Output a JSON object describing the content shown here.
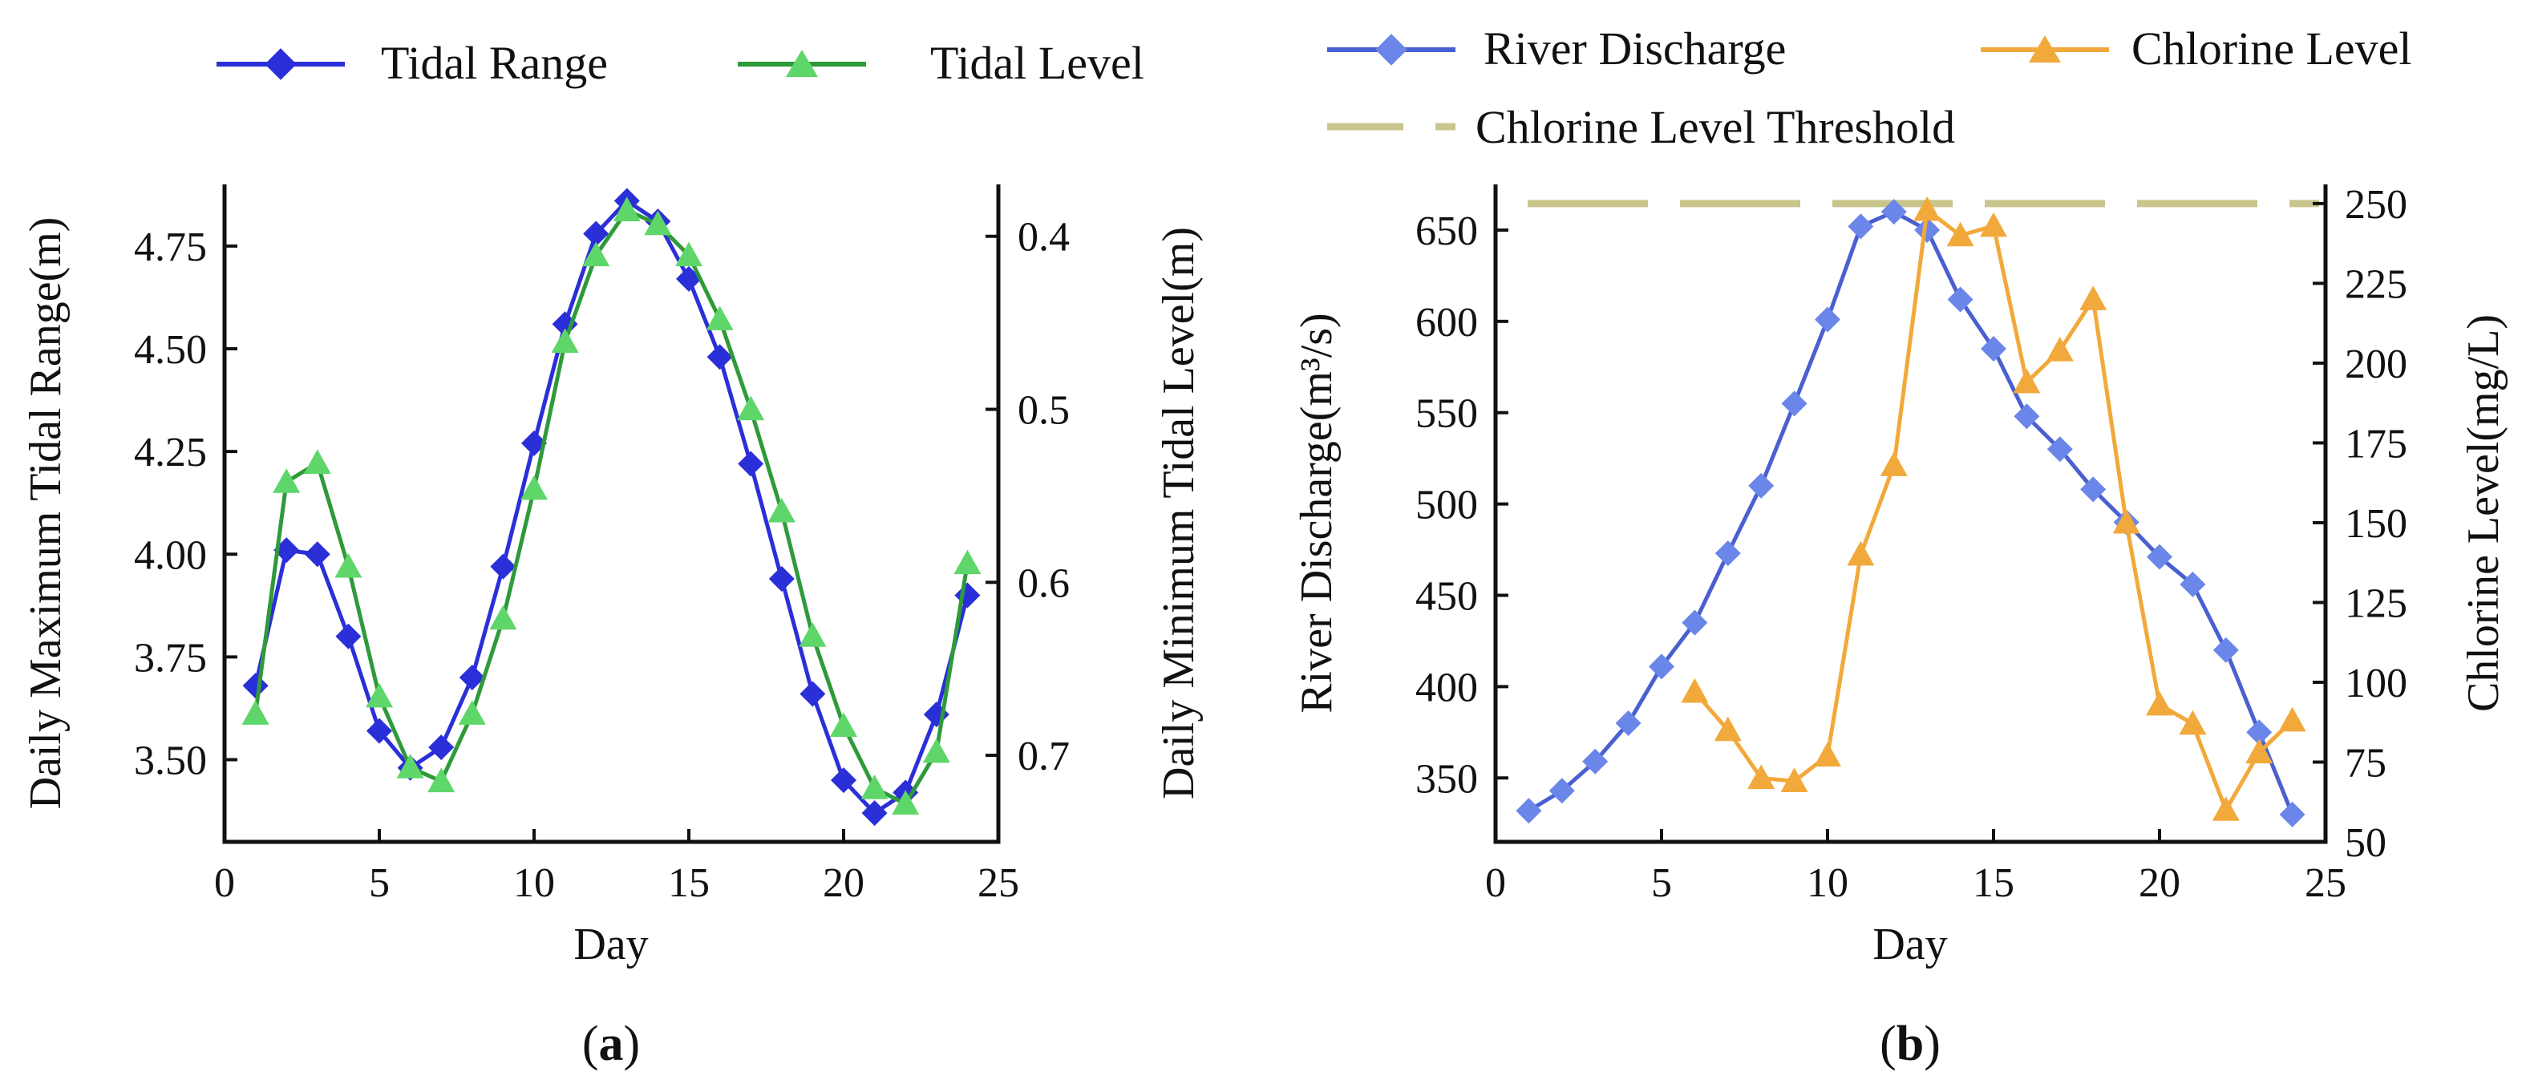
{
  "chart_data": [
    {
      "id": "a",
      "type": "line",
      "panel_label": "a",
      "xlabel": "Day",
      "ylabel": "Daily Maximum Tidal Range(m)",
      "y2label": "Daily Minimum Tidal Level(m)",
      "xlim": [
        0,
        25
      ],
      "ylim": [
        3.3,
        4.9
      ],
      "y2lim": [
        0.75,
        0.37
      ],
      "xticks": [
        0,
        5,
        10,
        15,
        20,
        25
      ],
      "yticks": [
        3.5,
        3.75,
        4.0,
        4.25,
        4.5,
        4.75
      ],
      "ytick_labels": [
        "3.50",
        "3.75",
        "4.00",
        "4.25",
        "4.50",
        "4.75"
      ],
      "y2ticks": [
        0.4,
        0.5,
        0.6,
        0.7
      ],
      "y2tick_labels": [
        "0.4",
        "0.5",
        "0.6",
        "0.7"
      ],
      "x": [
        1,
        2,
        3,
        4,
        5,
        6,
        7,
        8,
        9,
        10,
        11,
        12,
        13,
        14,
        15,
        16,
        17,
        18,
        19,
        20,
        21,
        22,
        23,
        24
      ],
      "series": [
        {
          "name": "Tidal Range",
          "axis": "left",
          "marker": "diamond",
          "color": "#2a2fd8",
          "values": [
            3.68,
            4.01,
            4.0,
            3.8,
            3.57,
            3.48,
            3.53,
            3.7,
            3.97,
            4.27,
            4.56,
            4.78,
            4.86,
            4.81,
            4.67,
            4.48,
            4.22,
            3.94,
            3.66,
            3.45,
            3.37,
            3.42,
            3.61,
            3.9
          ]
        },
        {
          "name": "Tidal Level",
          "axis": "right",
          "marker": "triangle",
          "color": "#2e9a3a",
          "values": [
            0.676,
            0.542,
            0.531,
            0.591,
            0.666,
            0.707,
            0.715,
            0.676,
            0.621,
            0.546,
            0.461,
            0.411,
            0.385,
            0.393,
            0.411,
            0.448,
            0.5,
            0.559,
            0.631,
            0.683,
            0.719,
            0.728,
            0.698,
            0.589
          ]
        }
      ]
    },
    {
      "id": "b",
      "type": "line",
      "panel_label": "b",
      "xlabel": "Day",
      "ylabel": "River Discharge(m³/s)",
      "y2label": "Chlorine Level(mg/L)",
      "xlim": [
        0,
        25
      ],
      "ylim": [
        315,
        675
      ],
      "y2lim": [
        50,
        256
      ],
      "xticks": [
        0,
        5,
        10,
        15,
        20,
        25
      ],
      "yticks": [
        350,
        400,
        450,
        500,
        550,
        600,
        650
      ],
      "ytick_labels": [
        "350",
        "400",
        "450",
        "500",
        "550",
        "600",
        "650"
      ],
      "y2ticks": [
        50,
        75,
        100,
        125,
        150,
        175,
        200,
        225,
        250
      ],
      "y2tick_labels": [
        "50",
        "75",
        "100",
        "125",
        "150",
        "175",
        "200",
        "225",
        "250"
      ],
      "threshold": {
        "name": "Chlorine Level Threshold",
        "value": 250,
        "color": "#c9c58c"
      },
      "series": [
        {
          "name": "River Discharge",
          "axis": "left",
          "marker": "diamond",
          "color": "#4a5fd0",
          "x": [
            1,
            2,
            3,
            4,
            5,
            6,
            7,
            8,
            9,
            10,
            11,
            12,
            13,
            14,
            15,
            16,
            17,
            18,
            19,
            20,
            21,
            22,
            23,
            24
          ],
          "values": [
            332,
            343,
            359,
            380,
            411,
            435,
            473,
            510,
            555,
            601,
            652,
            660,
            650,
            612,
            585,
            548,
            530,
            508,
            490,
            471,
            456,
            420,
            375,
            330
          ]
        },
        {
          "name": "Chlorine Level",
          "axis": "right",
          "marker": "triangle",
          "color": "#f2a93b",
          "x": [
            6,
            7,
            8,
            9,
            10,
            11,
            12,
            13,
            14,
            15,
            16,
            17,
            18,
            19,
            20,
            21,
            22,
            23,
            24
          ],
          "values": [
            97,
            85,
            70,
            69,
            77,
            140,
            168,
            248,
            240,
            243,
            194,
            204,
            220,
            150,
            93,
            87,
            60,
            78,
            88
          ]
        }
      ]
    }
  ]
}
